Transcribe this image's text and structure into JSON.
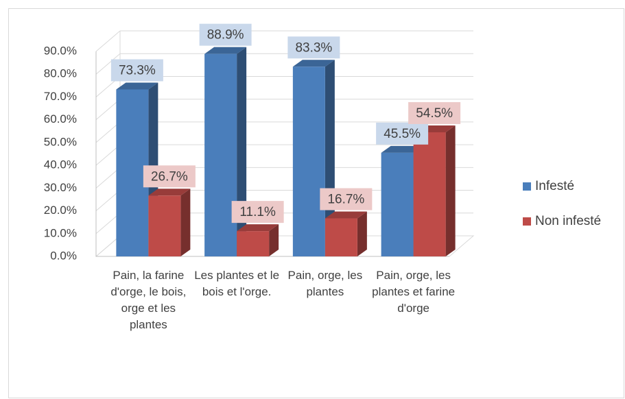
{
  "chart_data": {
    "type": "bar3d",
    "categories": [
      "Pain, la farine d'orge, le bois, orge et les plantes",
      "Les plantes et le bois et l'orge.",
      "Pain, orge, les plantes",
      "Pain, orge, les plantes et farine d'orge"
    ],
    "series": [
      {
        "name": "Infesté",
        "color": "#4a7ebb",
        "values": [
          73.3,
          88.9,
          83.3,
          45.5
        ],
        "value_labels": [
          "73.3%",
          "88.9%",
          "83.3%",
          "45.5%"
        ]
      },
      {
        "name": "Non infesté",
        "color": "#be4b48",
        "values": [
          26.7,
          11.1,
          16.7,
          54.5
        ],
        "value_labels": [
          "26.7%",
          "11.1%",
          "16.7%",
          "54.5%"
        ]
      }
    ],
    "ylim": [
      0,
      90
    ],
    "yticks": [
      {
        "value": 0,
        "label": "0.0%"
      },
      {
        "value": 10,
        "label": "10.0%"
      },
      {
        "value": 20,
        "label": "20.0%"
      },
      {
        "value": 30,
        "label": "30.0%"
      },
      {
        "value": 40,
        "label": "40.0%"
      },
      {
        "value": 50,
        "label": "50.0%"
      },
      {
        "value": 60,
        "label": "60.0%"
      },
      {
        "value": 70,
        "label": "70.0%"
      },
      {
        "value": 80,
        "label": "80.0%"
      },
      {
        "value": 90,
        "label": "90.0%"
      }
    ],
    "grid": true,
    "legend": "right"
  }
}
